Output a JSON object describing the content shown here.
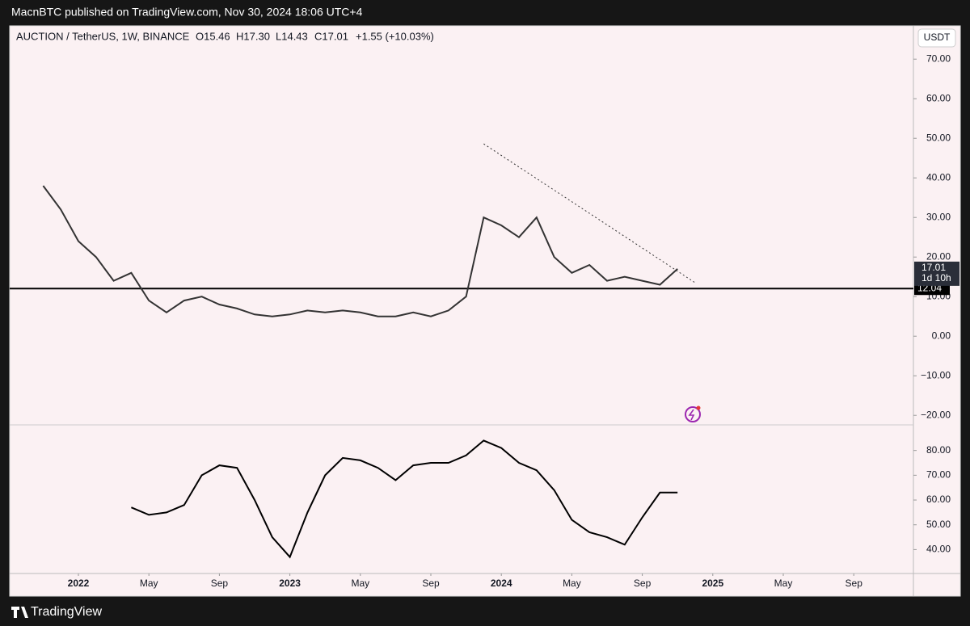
{
  "published": "MacnBTC published on TradingView.com, Nov 30, 2024 18:06 UTC+4",
  "branding": "TradingView",
  "header": {
    "symbol": "AUCTION / TetherUS, 1W, BINANCE",
    "open": "O15.46",
    "high": "H17.30",
    "low": "L14.43",
    "close": "C17.01",
    "change": "+1.55 (+10.03%)"
  },
  "chart_data": [
    {
      "type": "line",
      "color": "#333333",
      "x": [
        "2021-11",
        "2021-12",
        "2022-01",
        "2022-02",
        "2022-03",
        "2022-04",
        "2022-05",
        "2022-06",
        "2022-07",
        "2022-08",
        "2022-09",
        "2022-10",
        "2022-11",
        "2022-12",
        "2023-01",
        "2023-02",
        "2023-03",
        "2023-04",
        "2023-05",
        "2023-06",
        "2023-07",
        "2023-08",
        "2023-09",
        "2023-10",
        "2023-11",
        "2023-12",
        "2024-01",
        "2024-02",
        "2024-03",
        "2024-04",
        "2024-05",
        "2024-06",
        "2024-07",
        "2024-08",
        "2024-09",
        "2024-10",
        "2024-11"
      ],
      "values": [
        38,
        32,
        24,
        20,
        14,
        16,
        9,
        6,
        9,
        10,
        8,
        7,
        5.5,
        5,
        5.5,
        6.5,
        6,
        6.5,
        6,
        5,
        5,
        6,
        5,
        6.5,
        10,
        30,
        28,
        25,
        30,
        20,
        16,
        18,
        14,
        15,
        14,
        13,
        17.01
      ],
      "ylim": [
        -22.2,
        77.8
      ],
      "yticks": [
        {
          "value": -20,
          "label": "−20.00"
        },
        {
          "value": -10,
          "label": "−10.00"
        },
        {
          "value": 0,
          "label": "0.00"
        },
        {
          "value": 10,
          "label": "10.00"
        },
        {
          "value": 20,
          "label": "20.00"
        },
        {
          "value": 30,
          "label": "30.00"
        },
        {
          "value": 40,
          "label": "40.00"
        },
        {
          "value": 50,
          "label": "50.00"
        },
        {
          "value": 60,
          "label": "60.00"
        },
        {
          "value": 70,
          "label": "70.00"
        }
      ],
      "support": {
        "value": 12.04,
        "label": "12.04"
      },
      "last_price": {
        "value": 17.01,
        "label": "17.01"
      },
      "countdown": "1d 10h",
      "currency": "USDT",
      "trendline": {
        "x": [
          "2023-12",
          "2024-12"
        ],
        "values": [
          48.6,
          13.5
        ]
      }
    },
    {
      "type": "line",
      "color": "#000000",
      "x": [
        "2022-04",
        "2022-05",
        "2022-06",
        "2022-07",
        "2022-08",
        "2022-09",
        "2022-10",
        "2022-11",
        "2022-12",
        "2023-01",
        "2023-02",
        "2023-03",
        "2023-04",
        "2023-05",
        "2023-06",
        "2023-07",
        "2023-08",
        "2023-09",
        "2023-10",
        "2023-11",
        "2023-12",
        "2024-01",
        "2024-02",
        "2024-03",
        "2024-04",
        "2024-05",
        "2024-06",
        "2024-07",
        "2024-08",
        "2024-09",
        "2024-10",
        "2024-11"
      ],
      "values": [
        57,
        54,
        55,
        58,
        70,
        74,
        73,
        60,
        45,
        37,
        55,
        70,
        77,
        76,
        73,
        68,
        74,
        75,
        75,
        78,
        84,
        81,
        75,
        72,
        64,
        52,
        47,
        45,
        42,
        53,
        63,
        63
      ],
      "ylim": [
        31,
        90
      ],
      "yticks": [
        {
          "value": 40,
          "label": "40.00"
        },
        {
          "value": 50,
          "label": "50.00"
        },
        {
          "value": 60,
          "label": "60.00"
        },
        {
          "value": 70,
          "label": "70.00"
        },
        {
          "value": 80,
          "label": "80.00"
        }
      ],
      "xticks": [
        {
          "value": "2022-01",
          "label": "2022"
        },
        {
          "value": "2022-05",
          "label": "May"
        },
        {
          "value": "2022-09",
          "label": "Sep"
        },
        {
          "value": "2023-01",
          "label": "2023"
        },
        {
          "value": "2023-05",
          "label": "May"
        },
        {
          "value": "2023-09",
          "label": "Sep"
        },
        {
          "value": "2024-01",
          "label": "2024"
        },
        {
          "value": "2024-05",
          "label": "May"
        },
        {
          "value": "2024-09",
          "label": "Sep"
        },
        {
          "value": "2025-01",
          "label": "2025"
        },
        {
          "value": "2025-05",
          "label": "May"
        },
        {
          "value": "2025-09",
          "label": "Sep"
        }
      ]
    }
  ]
}
